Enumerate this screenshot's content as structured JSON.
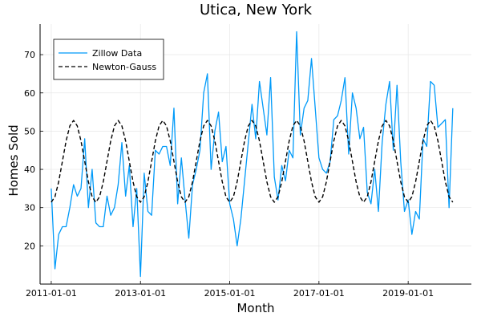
{
  "chart_data": {
    "type": "line",
    "title": "Utica, New York",
    "xlabel": "Month",
    "ylabel": "Homes Sold",
    "grid": true,
    "legend_position": "top-left",
    "x_start": "2011-01",
    "x_frequency": "monthly",
    "xlim": [
      "2010-10",
      "2020-06"
    ],
    "ylim": [
      10,
      78
    ],
    "x_ticks": [
      "2011-01-01",
      "2013-01-01",
      "2015-01-01",
      "2017-01-01",
      "2019-01-01"
    ],
    "y_ticks": [
      20,
      30,
      40,
      50,
      60,
      70
    ],
    "series": [
      {
        "name": "Zillow Data",
        "color": "#009AF9",
        "style": "solid",
        "values": [
          35,
          14,
          23,
          25,
          25,
          30,
          36,
          33,
          35,
          48,
          30,
          40,
          26,
          25,
          25,
          33,
          28,
          30,
          36,
          47,
          33,
          41,
          25,
          35,
          12,
          39,
          29,
          28,
          45,
          44,
          46,
          46,
          41,
          56,
          31,
          43,
          32,
          22,
          36,
          40,
          45,
          60,
          65,
          40,
          50,
          55,
          42,
          46,
          31,
          27,
          20,
          27,
          37,
          47,
          57,
          48,
          63,
          56,
          49,
          64,
          38,
          32,
          41,
          37,
          45,
          43,
          76,
          49,
          56,
          58,
          69,
          56,
          43,
          40,
          39,
          42,
          53,
          54,
          58,
          64,
          44,
          60,
          56,
          48,
          51,
          34,
          31,
          40,
          29,
          47,
          57,
          63,
          45,
          62,
          42,
          29,
          32,
          23,
          29,
          27,
          48,
          46,
          63,
          62,
          51,
          52,
          53,
          30,
          56
        ]
      },
      {
        "name": "Newton-Gauss",
        "color": "#000000",
        "style": "dashed",
        "model": "y = 42.1 + 10.7 * cos(2*pi*(m - 6)/12), m = month index from 2011-01",
        "values": []
      }
    ]
  }
}
